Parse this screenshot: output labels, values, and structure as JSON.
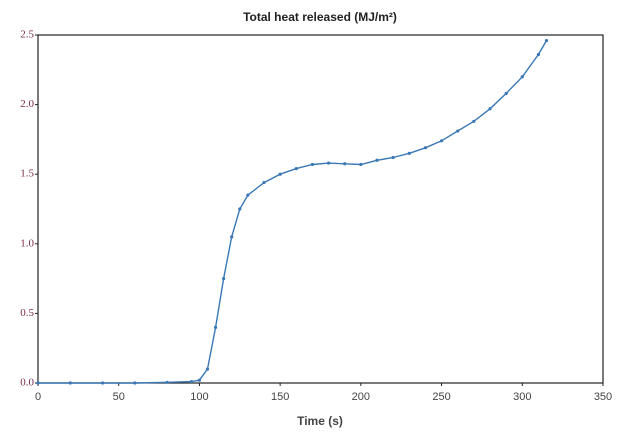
{
  "chart_data": {
    "type": "line",
    "title": "Total heat released (MJ/m²)",
    "x_label": "Time (s)",
    "x": [
      0,
      20,
      40,
      60,
      80,
      95,
      100,
      105,
      110,
      115,
      120,
      125,
      130,
      140,
      150,
      160,
      170,
      180,
      190,
      200,
      210,
      220,
      230,
      240,
      250,
      260,
      270,
      280,
      290,
      300,
      310,
      315
    ],
    "values": [
      0,
      0,
      0,
      0,
      0.005,
      0.01,
      0.02,
      0.1,
      0.4,
      0.75,
      1.05,
      1.25,
      1.35,
      1.44,
      1.5,
      1.54,
      1.57,
      1.58,
      1.575,
      1.57,
      1.6,
      1.62,
      1.65,
      1.69,
      1.74,
      1.81,
      1.88,
      1.97,
      2.08,
      2.2,
      2.36,
      2.46
    ],
    "color": "#3a78b5",
    "xlim": [
      0,
      350
    ],
    "xticks": [
      0,
      50,
      100,
      150,
      200,
      250,
      300,
      350
    ],
    "ylim": [
      0,
      2.5
    ],
    "yticks": [
      {
        "value": 0,
        "label": "0.0"
      },
      0.5,
      {
        "value": 1,
        "label": "1.0"
      },
      1.5,
      {
        "value": 2,
        "label": "2.0"
      },
      2.5
    ]
  }
}
